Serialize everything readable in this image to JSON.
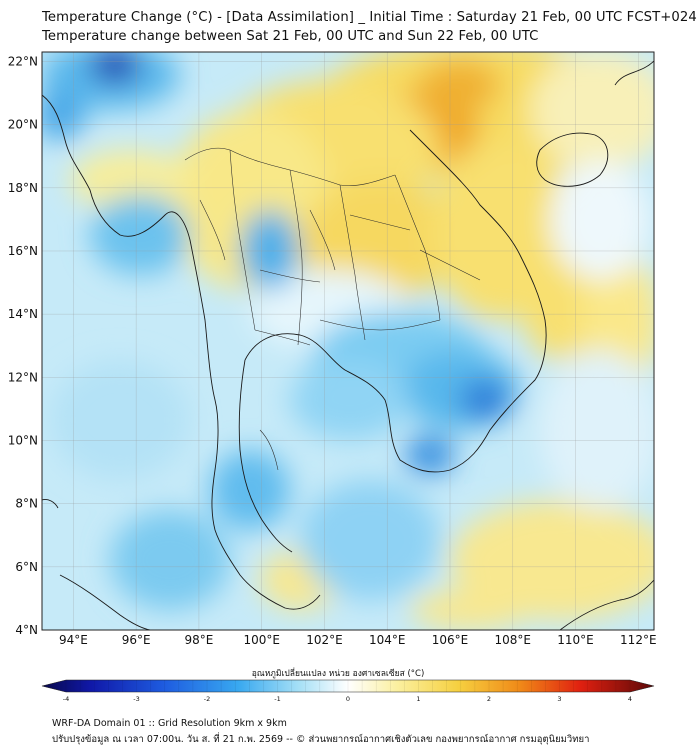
{
  "header": {
    "title_line1": "Temperature Change (°C) - [Data Assimilation] _ Initial Time : Saturday 21 Feb, 00 UTC FCST+024",
    "title_line2": "Temperature change between Sat 21 Feb, 00 UTC and Sun 22 Feb, 00 UTC"
  },
  "map": {
    "lat_labels": [
      "22°N",
      "20°N",
      "18°N",
      "16°N",
      "14°N",
      "12°N",
      "10°N",
      "8°N",
      "6°N",
      "4°N"
    ],
    "lon_labels": [
      "94°E",
      "96°E",
      "98°E",
      "100°E",
      "102°E",
      "104°E",
      "106°E",
      "108°E",
      "110°E",
      "112°E"
    ],
    "lat_range": [
      4,
      22.3
    ],
    "lon_range": [
      93,
      112.5
    ],
    "grid": true,
    "field_description_colors": {
      "cold_dark": "#1020a0",
      "cold": "#3aa0e8",
      "cool": "#a8dcf4",
      "neutral": "#ffffff",
      "warm": "#f5e070",
      "hot": "#f0a020",
      "hotter": "#e06010"
    }
  },
  "colorbar": {
    "title": "อุณหภูมิเปลี่ยนแปลง หน่วย องศาเซลเซียส (°C)",
    "ticks": [
      "-4",
      "-3",
      "-2",
      "-1",
      "0",
      "1",
      "2",
      "3",
      "4"
    ],
    "min": -4,
    "max": 4
  },
  "footer": {
    "line1": "WRF-DA Domain 01 :: Grid Resolution 9km x 9km",
    "line2": "ปรับปรุงข้อมูล ณ เวลา 07:00น. วัน ส. ที่ 21 ก.พ. 2569 -- © ส่วนพยากรณ์อากาศเชิงตัวเลข กองพยากรณ์อากาศ กรมอุตุนิยมวิทยา"
  }
}
